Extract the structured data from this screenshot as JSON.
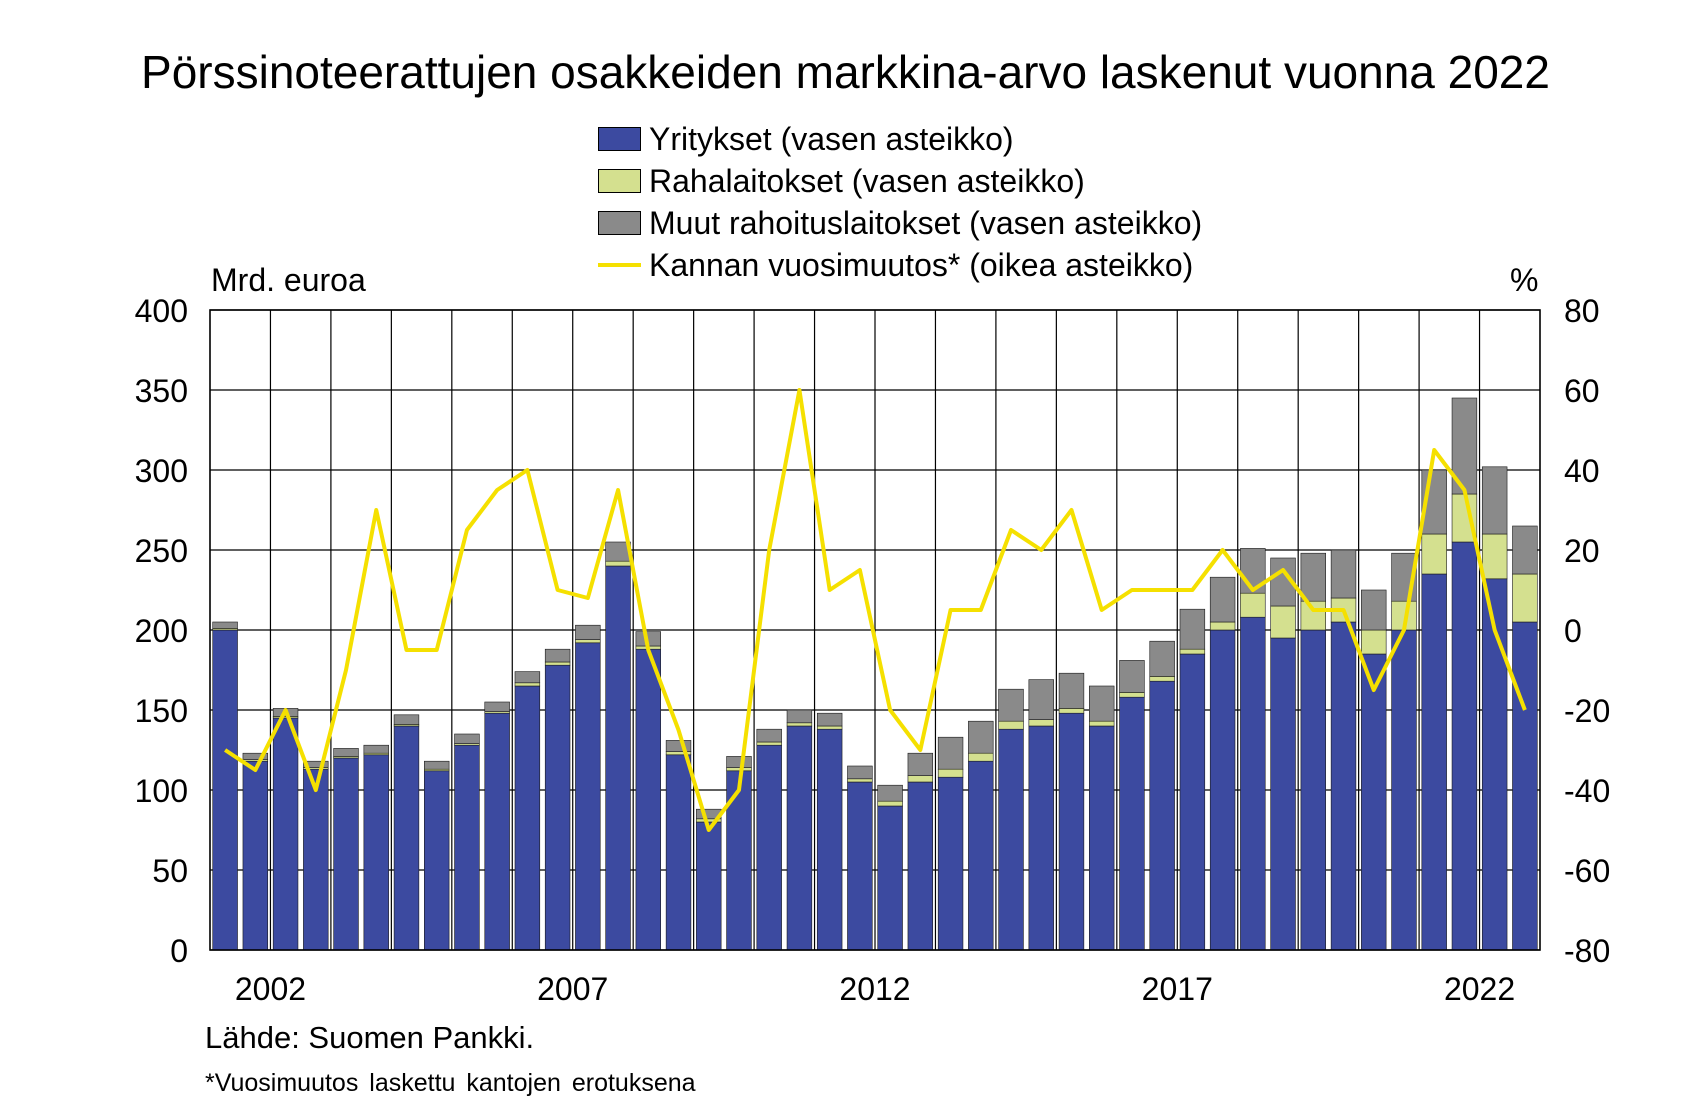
{
  "title": "Pörssinoteerattujen osakkeiden markkina-arvo laskenut vuonna 2022",
  "left_unit": "Mrd. euroa",
  "right_unit": "%",
  "source": "Lähde: Suomen Pankki.",
  "footnote": "*Vuosimuutos laskettu kantojen erotuksena",
  "colors": {
    "yritykset": "#3c4aa0",
    "rahalaitokset": "#d4e08f",
    "muut": "#8a8a8a",
    "kanta": "#f5e000"
  },
  "legend": [
    {
      "label": "Yritykset (vasen asteikko)",
      "type": "bar",
      "color": "#3c4aa0"
    },
    {
      "label": "Rahalaitokset (vasen asteikko)",
      "type": "bar",
      "color": "#d4e08f"
    },
    {
      "label": "Muut rahoituslaitokset (vasen asteikko)",
      "type": "bar",
      "color": "#8a8a8a"
    },
    {
      "label": "Kannan vuosimuutos* (oikea asteikko)",
      "type": "line",
      "color": "#f5e000"
    }
  ],
  "chart_data": {
    "type": "bar",
    "stacked": true,
    "x_ticks": [
      "2002",
      "2007",
      "2012",
      "2017",
      "2022"
    ],
    "y_left_ticks": [
      "0",
      "50",
      "100",
      "150",
      "200",
      "250",
      "300",
      "350",
      "400"
    ],
    "y_right_ticks": [
      "-80",
      "-60",
      "-40",
      "-20",
      "0",
      "20",
      "40",
      "60",
      "80"
    ],
    "ylim_left": [
      0,
      400
    ],
    "ylim_right": [
      -80,
      80
    ],
    "grid": true,
    "x": [
      "2001.0",
      "2001.5",
      "2002.0",
      "2002.5",
      "2003.0",
      "2003.5",
      "2004.0",
      "2004.5",
      "2005.0",
      "2005.5",
      "2006.0",
      "2006.5",
      "2007.0",
      "2007.5",
      "2008.0",
      "2008.5",
      "2009.0",
      "2009.5",
      "2010.0",
      "2010.5",
      "2011.0",
      "2011.5",
      "2012.0",
      "2012.5",
      "2013.0",
      "2013.5",
      "2014.0",
      "2014.5",
      "2015.0",
      "2015.5",
      "2016.0",
      "2016.5",
      "2017.0",
      "2017.5",
      "2018.0",
      "2018.5",
      "2019.0",
      "2019.5",
      "2020.0",
      "2020.5",
      "2021.0",
      "2021.5",
      "2022.0",
      "2022.5"
    ],
    "series": [
      {
        "name": "Yritykset (vasen asteikko)",
        "type": "bar",
        "axis": "left",
        "values": [
          200,
          118,
          145,
          113,
          120,
          122,
          140,
          112,
          128,
          148,
          165,
          178,
          192,
          240,
          188,
          122,
          80,
          112,
          128,
          140,
          138,
          105,
          90,
          105,
          108,
          118,
          138,
          140,
          148,
          140,
          158,
          168,
          185,
          200,
          208,
          195,
          200,
          205,
          185,
          200,
          235,
          255,
          232,
          205
        ]
      },
      {
        "name": "Rahalaitokset (vasen asteikko)",
        "type": "bar",
        "axis": "left",
        "values": [
          1,
          1,
          1,
          1,
          1,
          1,
          1,
          1,
          1,
          1,
          2,
          2,
          2,
          3,
          2,
          2,
          2,
          2,
          2,
          2,
          2,
          2,
          3,
          4,
          5,
          5,
          5,
          4,
          3,
          3,
          3,
          3,
          3,
          5,
          15,
          20,
          18,
          15,
          15,
          18,
          25,
          30,
          28,
          30
        ]
      },
      {
        "name": "Muut rahoituslaitokset (vasen asteikko)",
        "type": "bar",
        "axis": "left",
        "values": [
          4,
          4,
          5,
          4,
          5,
          5,
          6,
          5,
          6,
          6,
          7,
          8,
          9,
          12,
          9,
          7,
          6,
          7,
          8,
          8,
          8,
          8,
          10,
          14,
          20,
          20,
          20,
          25,
          22,
          22,
          20,
          22,
          25,
          28,
          28,
          30,
          30,
          30,
          25,
          30,
          40,
          60,
          42,
          30
        ]
      },
      {
        "name": "Kannan vuosimuutos* (oikea asteikko)",
        "type": "line",
        "axis": "right",
        "values": [
          -30,
          -35,
          -20,
          -40,
          -10,
          30,
          -5,
          -5,
          25,
          35,
          40,
          10,
          8,
          35,
          -5,
          -25,
          -50,
          -40,
          20,
          60,
          10,
          15,
          -20,
          -30,
          5,
          5,
          25,
          20,
          30,
          5,
          10,
          10,
          10,
          20,
          10,
          15,
          5,
          5,
          -15,
          0,
          45,
          35,
          0,
          -20
        ]
      }
    ]
  }
}
